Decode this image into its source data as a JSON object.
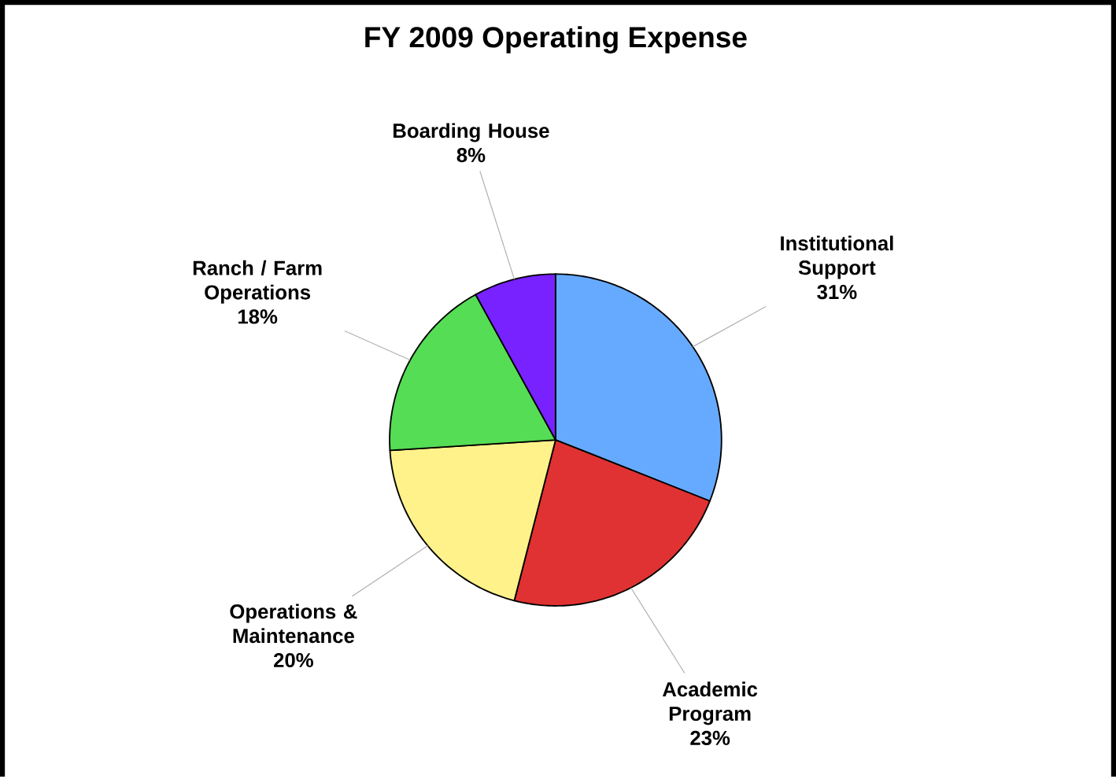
{
  "chart_data": {
    "type": "pie",
    "title": "FY 2009 Operating Expense",
    "categories": [
      "Institutional Support",
      "Academic Program",
      "Operations & Maintenance",
      "Ranch / Farm Operations",
      "Boarding House"
    ],
    "values": [
      31,
      23,
      20,
      18,
      8
    ],
    "value_labels": [
      "31%",
      "23%",
      "20%",
      "18%",
      "8%"
    ],
    "colors": [
      "#66aaff",
      "#e03232",
      "#fff28a",
      "#55dd55",
      "#7722ff"
    ]
  }
}
